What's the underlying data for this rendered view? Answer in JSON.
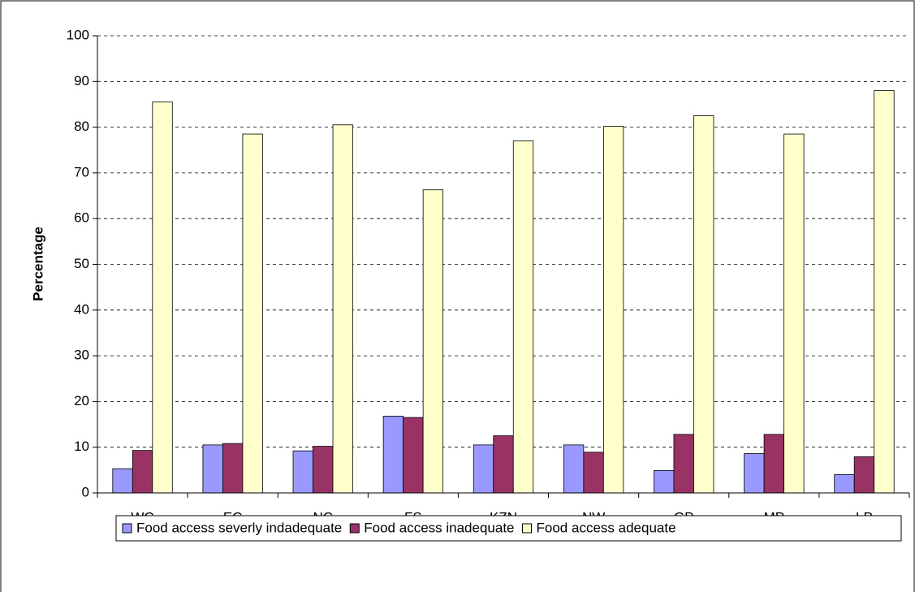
{
  "chart_data": {
    "type": "bar",
    "y_label": "Percentage",
    "categories": [
      "WC",
      "EC",
      "NC",
      "FS",
      "KZN",
      "NW",
      "GP",
      "MP",
      "LP"
    ],
    "series": [
      {
        "name": "Food access severly indadequate",
        "color": "#9999ff",
        "values": [
          5.3,
          10.5,
          9.2,
          16.8,
          10.5,
          10.5,
          4.9,
          8.6,
          4.0
        ]
      },
      {
        "name": "Food access inadequate",
        "color": "#993366",
        "values": [
          9.3,
          10.8,
          10.2,
          16.5,
          12.5,
          8.9,
          12.8,
          12.8,
          7.9
        ]
      },
      {
        "name": "Food access adequate",
        "color": "#ffffcc",
        "values": [
          85.5,
          78.5,
          80.5,
          66.3,
          77.0,
          80.2,
          82.5,
          78.5,
          88.0
        ]
      }
    ],
    "ylim": [
      0,
      100
    ],
    "yticks": [
      0,
      10,
      20,
      30,
      40,
      50,
      60,
      70,
      80,
      90,
      100
    ],
    "grid": true,
    "legend": "bottom"
  }
}
